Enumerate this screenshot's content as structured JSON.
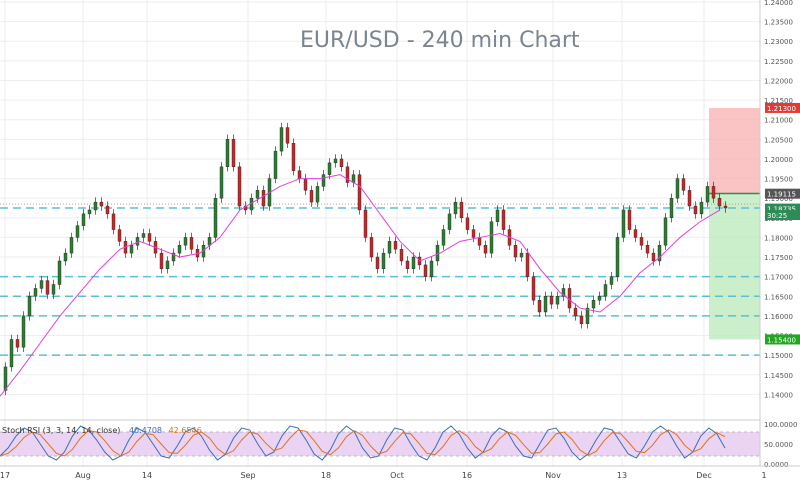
{
  "title": "EUR/USD - 240 min Chart",
  "chart_data": {
    "type": "candlestick",
    "title": "EUR/USD - 240 min Chart",
    "symbol": "EUR/USD",
    "timeframe": "240 min",
    "ylim": [
      1.135,
      1.24
    ],
    "y_ticks": [
      "1.24000",
      "1.23500",
      "1.23000",
      "1.22500",
      "1.22000",
      "1.21500",
      "1.21000",
      "1.20500",
      "1.20000",
      "1.19500",
      "1.19000",
      "1.18500",
      "1.18000",
      "1.17500",
      "1.17000",
      "1.16500",
      "1.16000",
      "1.15500",
      "1.15000",
      "1.14500",
      "1.14000"
    ],
    "x_ticks": [
      "17",
      "Aug",
      "14",
      "Sep",
      "18",
      "Oct",
      "16",
      "Nov",
      "13",
      "Dec",
      "1"
    ],
    "price_labels": [
      {
        "text": "1.21300",
        "value": 1.213,
        "color": "#e53935"
      },
      {
        "text": "1.19115",
        "value": 1.19115,
        "color": "#555555"
      },
      {
        "text": "1.18735",
        "value": 1.18735,
        "color": "#2e8b57"
      },
      {
        "text": "30:25",
        "value": 1.1857,
        "color": "#2e8b57"
      },
      {
        "text": "1.15400",
        "value": 1.154,
        "color": "#22a622"
      }
    ],
    "horizontal_levels": [
      1.1875,
      1.17,
      1.165,
      1.16,
      1.15
    ],
    "dotted_level": 1.1885,
    "risk_zone": {
      "top": 1.213,
      "bottom": 1.1912
    },
    "reward_zone": {
      "top": 1.1912,
      "bottom": 1.154
    },
    "close_points": [
      [
        0,
        1.141
      ],
      [
        6,
        1.147
      ],
      [
        12,
        1.154
      ],
      [
        18,
        1.152
      ],
      [
        24,
        1.16
      ],
      [
        30,
        1.165
      ],
      [
        36,
        1.167
      ],
      [
        42,
        1.169
      ],
      [
        48,
        1.1655
      ],
      [
        54,
        1.168
      ],
      [
        60,
        1.174
      ],
      [
        66,
        1.176
      ],
      [
        72,
        1.18
      ],
      [
        78,
        1.183
      ],
      [
        84,
        1.186
      ],
      [
        90,
        1.187
      ],
      [
        96,
        1.189
      ],
      [
        102,
        1.188
      ],
      [
        108,
        1.186
      ],
      [
        114,
        1.182
      ],
      [
        120,
        1.179
      ],
      [
        126,
        1.176
      ],
      [
        132,
        1.178
      ],
      [
        138,
        1.18
      ],
      [
        144,
        1.181
      ],
      [
        150,
        1.179
      ],
      [
        156,
        1.176
      ],
      [
        162,
        1.172
      ],
      [
        168,
        1.174
      ],
      [
        174,
        1.176
      ],
      [
        180,
        1.178
      ],
      [
        186,
        1.18
      ],
      [
        192,
        1.177
      ],
      [
        198,
        1.175
      ],
      [
        204,
        1.178
      ],
      [
        210,
        1.18
      ],
      [
        216,
        1.19
      ],
      [
        222,
        1.198
      ],
      [
        228,
        1.205
      ],
      [
        234,
        1.198
      ],
      [
        240,
        1.188
      ],
      [
        246,
        1.187
      ],
      [
        252,
        1.19
      ],
      [
        258,
        1.192
      ],
      [
        264,
        1.188
      ],
      [
        270,
        1.195
      ],
      [
        276,
        1.202
      ],
      [
        282,
        1.208
      ],
      [
        288,
        1.204
      ],
      [
        294,
        1.197
      ],
      [
        300,
        1.195
      ],
      [
        306,
        1.192
      ],
      [
        312,
        1.189
      ],
      [
        318,
        1.193
      ],
      [
        324,
        1.196
      ],
      [
        330,
        1.199
      ],
      [
        336,
        1.2
      ],
      [
        342,
        1.198
      ],
      [
        348,
        1.194
      ],
      [
        354,
        1.196
      ],
      [
        360,
        1.187
      ],
      [
        366,
        1.18
      ],
      [
        372,
        1.175
      ],
      [
        378,
        1.172
      ],
      [
        384,
        1.176
      ],
      [
        390,
        1.179
      ],
      [
        396,
        1.177
      ],
      [
        402,
        1.174
      ],
      [
        408,
        1.172
      ],
      [
        414,
        1.175
      ],
      [
        420,
        1.173
      ],
      [
        426,
        1.17
      ],
      [
        432,
        1.174
      ],
      [
        438,
        1.178
      ],
      [
        444,
        1.182
      ],
      [
        450,
        1.186
      ],
      [
        456,
        1.189
      ],
      [
        462,
        1.185
      ],
      [
        468,
        1.182
      ],
      [
        474,
        1.18
      ],
      [
        480,
        1.178
      ],
      [
        486,
        1.176
      ],
      [
        492,
        1.184
      ],
      [
        498,
        1.187
      ],
      [
        504,
        1.182
      ],
      [
        510,
        1.178
      ],
      [
        516,
        1.175
      ],
      [
        522,
        1.176
      ],
      [
        528,
        1.17
      ],
      [
        534,
        1.164
      ],
      [
        540,
        1.161
      ],
      [
        546,
        1.165
      ],
      [
        552,
        1.163
      ],
      [
        558,
        1.165
      ],
      [
        564,
        1.167
      ],
      [
        570,
        1.162
      ],
      [
        576,
        1.16
      ],
      [
        582,
        1.158
      ],
      [
        588,
        1.162
      ],
      [
        594,
        1.164
      ],
      [
        600,
        1.165
      ],
      [
        606,
        1.168
      ],
      [
        612,
        1.17
      ],
      [
        618,
        1.18
      ],
      [
        624,
        1.187
      ],
      [
        630,
        1.182
      ],
      [
        636,
        1.18
      ],
      [
        642,
        1.178
      ],
      [
        648,
        1.176
      ],
      [
        654,
        1.174
      ],
      [
        660,
        1.178
      ],
      [
        666,
        1.185
      ],
      [
        672,
        1.19
      ],
      [
        678,
        1.195
      ],
      [
        684,
        1.192
      ],
      [
        690,
        1.188
      ],
      [
        696,
        1.186
      ],
      [
        702,
        1.189
      ],
      [
        708,
        1.193
      ],
      [
        714,
        1.19
      ],
      [
        720,
        1.188
      ],
      [
        726,
        1.1875
      ]
    ],
    "ma_points": [
      [
        0,
        1.1395
      ],
      [
        20,
        1.146
      ],
      [
        40,
        1.153
      ],
      [
        60,
        1.16
      ],
      [
        80,
        1.166
      ],
      [
        100,
        1.172
      ],
      [
        120,
        1.177
      ],
      [
        140,
        1.179
      ],
      [
        160,
        1.177
      ],
      [
        180,
        1.175
      ],
      [
        200,
        1.176
      ],
      [
        220,
        1.18
      ],
      [
        240,
        1.187
      ],
      [
        260,
        1.19
      ],
      [
        280,
        1.193
      ],
      [
        300,
        1.195
      ],
      [
        320,
        1.195
      ],
      [
        340,
        1.196
      ],
      [
        360,
        1.193
      ],
      [
        380,
        1.186
      ],
      [
        400,
        1.179
      ],
      [
        420,
        1.174
      ],
      [
        440,
        1.176
      ],
      [
        460,
        1.179
      ],
      [
        480,
        1.18
      ],
      [
        500,
        1.181
      ],
      [
        520,
        1.179
      ],
      [
        540,
        1.172
      ],
      [
        560,
        1.166
      ],
      [
        580,
        1.162
      ],
      [
        600,
        1.161
      ],
      [
        620,
        1.165
      ],
      [
        640,
        1.171
      ],
      [
        660,
        1.175
      ],
      [
        680,
        1.18
      ],
      [
        700,
        1.184
      ],
      [
        720,
        1.187
      ]
    ],
    "stochastic": {
      "label": "Stoch RSI (3, 3, 14, 14, close)",
      "k_value": "40.4708",
      "d_value": "42.6546",
      "ylim": [
        0,
        100
      ],
      "ticks": [
        "100.0000",
        "50.0000",
        "0.0000"
      ],
      "upper_band": 80,
      "lower_band": 20,
      "k": [
        20,
        40,
        70,
        90,
        80,
        50,
        20,
        10,
        30,
        70,
        95,
        85,
        60,
        30,
        10,
        20,
        60,
        90,
        80,
        50,
        20,
        15,
        45,
        80,
        90,
        70,
        35,
        10,
        25,
        65,
        90,
        85,
        50,
        20,
        30,
        70,
        95,
        90,
        60,
        25,
        10,
        35,
        75,
        95,
        80,
        40,
        15,
        20,
        60,
        90,
        85,
        50,
        20,
        10,
        40,
        80,
        95,
        75,
        40,
        15,
        30,
        70,
        90,
        80,
        45,
        20,
        15,
        50,
        85,
        90,
        65,
        30,
        10,
        25,
        60,
        90,
        85,
        55,
        25,
        15,
        45,
        80,
        95,
        80,
        45,
        15,
        30,
        70,
        90,
        75,
        40
      ]
    }
  }
}
